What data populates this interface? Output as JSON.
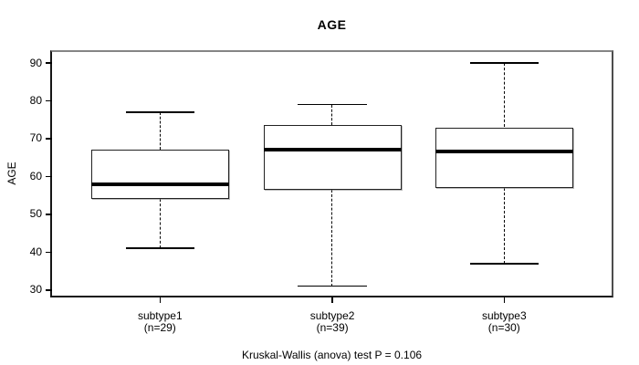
{
  "chart_data": {
    "type": "boxplot",
    "title": "AGE",
    "xlabel": "",
    "ylabel": "AGE",
    "ylim": [
      28.5,
      92.9
    ],
    "yticks": [
      30,
      40,
      50,
      60,
      70,
      80,
      90
    ],
    "grid": false,
    "legend": "none",
    "groups": [
      {
        "label": "subtype1",
        "sublabel": "(n=29)",
        "n": 29,
        "stats": {
          "whisker_low": 41,
          "q1": 54,
          "median": 58,
          "q3": 67,
          "whisker_high": 77
        }
      },
      {
        "label": "subtype2",
        "sublabel": "(n=39)",
        "n": 39,
        "stats": {
          "whisker_low": 31,
          "q1": 56.5,
          "median": 67,
          "q3": 73.5,
          "whisker_high": 79
        }
      },
      {
        "label": "subtype3",
        "sublabel": "(n=30)",
        "n": 30,
        "stats": {
          "whisker_low": 37,
          "q1": 57,
          "median": 66.5,
          "q3": 73,
          "whisker_high": 90
        }
      }
    ],
    "annotation": "Kruskal-Wallis (anova) test P = 0.106",
    "layout_hints": {
      "centers_frac": [
        0.193,
        0.501,
        0.808
      ],
      "box_width_frac": 0.246,
      "legend_position": "none"
    },
    "colors": {
      "line": "#000000",
      "box_fill": "#ffffff",
      "frame": "#808080",
      "background": "#ffffff"
    }
  }
}
